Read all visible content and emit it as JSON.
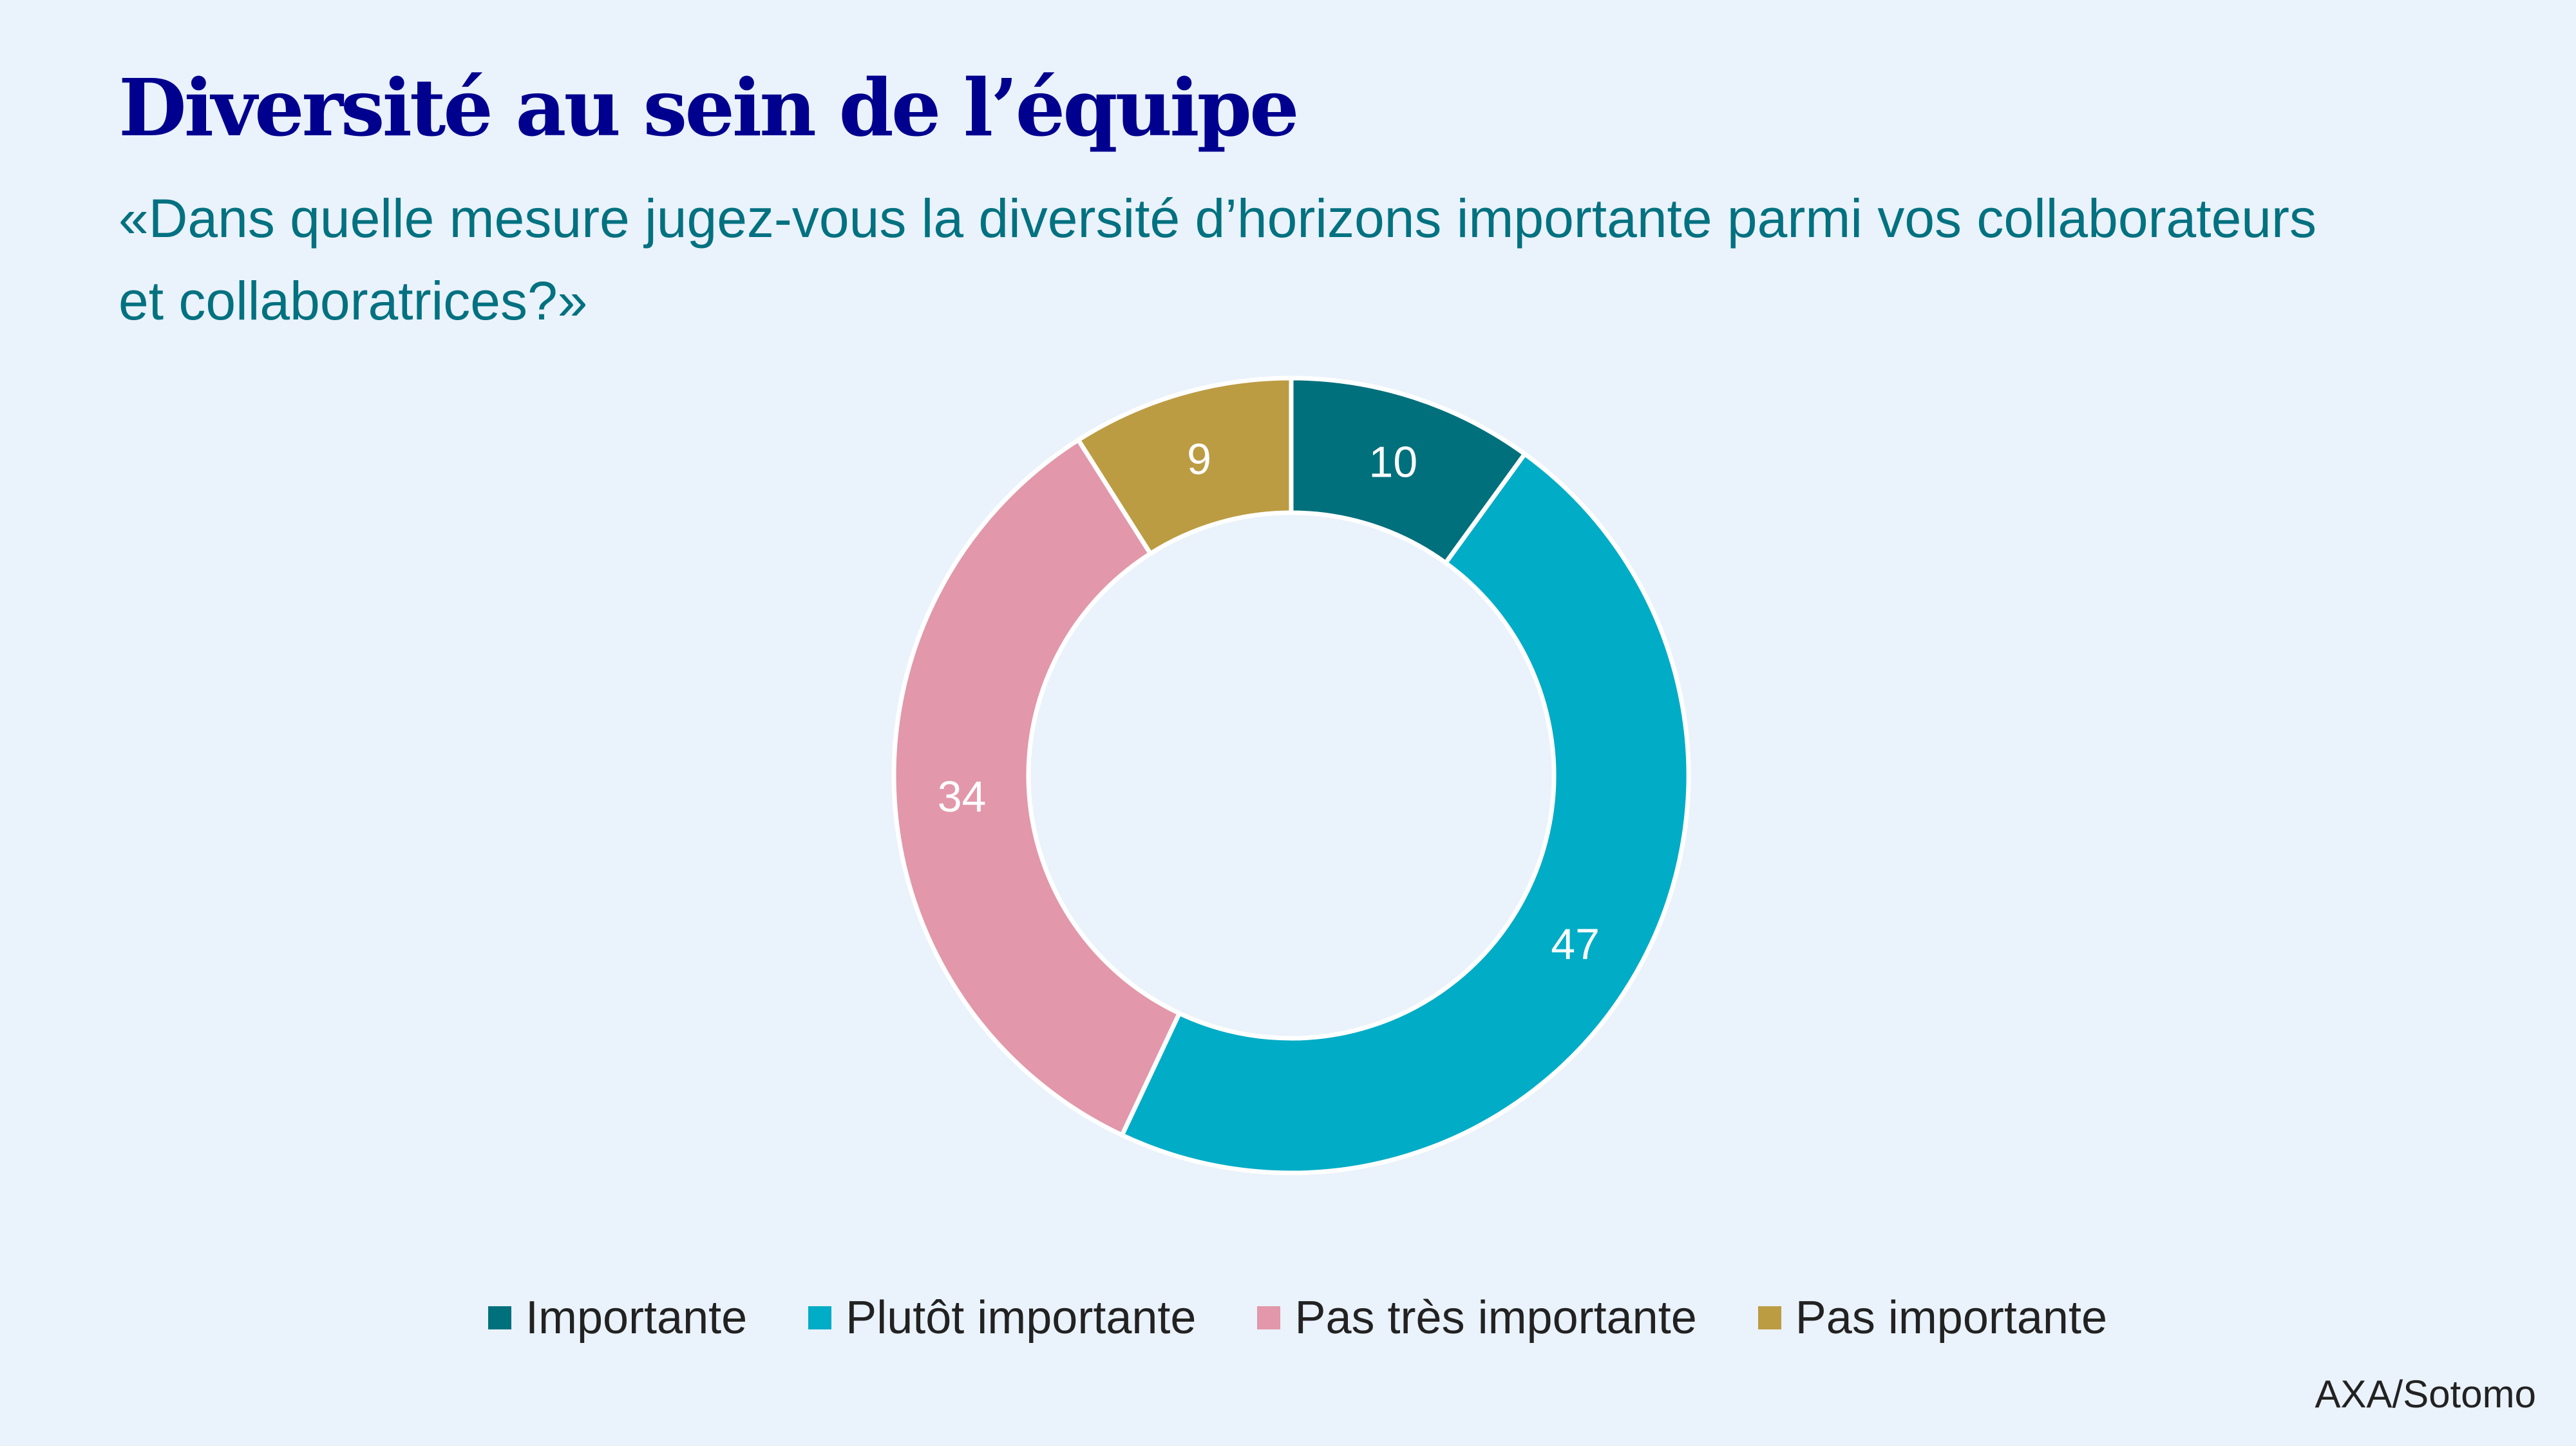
{
  "title": "Diversité au sein de l’équipe",
  "subtitle": "«Dans quelle mesure jugez-vous la diversité d’horizons importante parmi vos collaborateurs et collaboratrices?»",
  "source": "AXA/Sotomo",
  "chart_data": {
    "type": "pie",
    "variant": "donut",
    "title": "Diversité au sein de l’équipe",
    "categories": [
      "Importante",
      "Plutôt importante",
      "Pas très importante",
      "Pas importante"
    ],
    "values": [
      10,
      47,
      34,
      9
    ],
    "labels": [
      "10",
      "47",
      "34",
      "9"
    ],
    "colors": [
      "#00707c",
      "#00acc6",
      "#e297aa",
      "#bc9c43"
    ],
    "legend_position": "bottom"
  }
}
